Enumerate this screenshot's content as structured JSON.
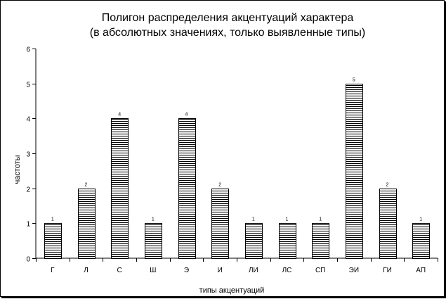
{
  "chart_data": {
    "type": "bar",
    "title": "Полигон распределения акцентуаций характера",
    "subtitle": "(в абсолютных значениях, только выявленные типы)",
    "xlabel": "типы акцентуаций",
    "ylabel": "частоты",
    "ylim": [
      0,
      6
    ],
    "yticks": [
      0,
      1,
      2,
      3,
      4,
      5,
      6
    ],
    "categories": [
      "Г",
      "Л",
      "С",
      "Ш",
      "Э",
      "И",
      "ЛИ",
      "ЛС",
      "СП",
      "ЭИ",
      "ГИ",
      "АП"
    ],
    "values": [
      1,
      2,
      4,
      1,
      4,
      2,
      1,
      1,
      1,
      5,
      2,
      1
    ],
    "data_labels": true,
    "bar_fill": "horizontal-lines",
    "grid": false,
    "legend": "none"
  },
  "colors": {
    "ink": "#000000",
    "background": "#ffffff"
  }
}
